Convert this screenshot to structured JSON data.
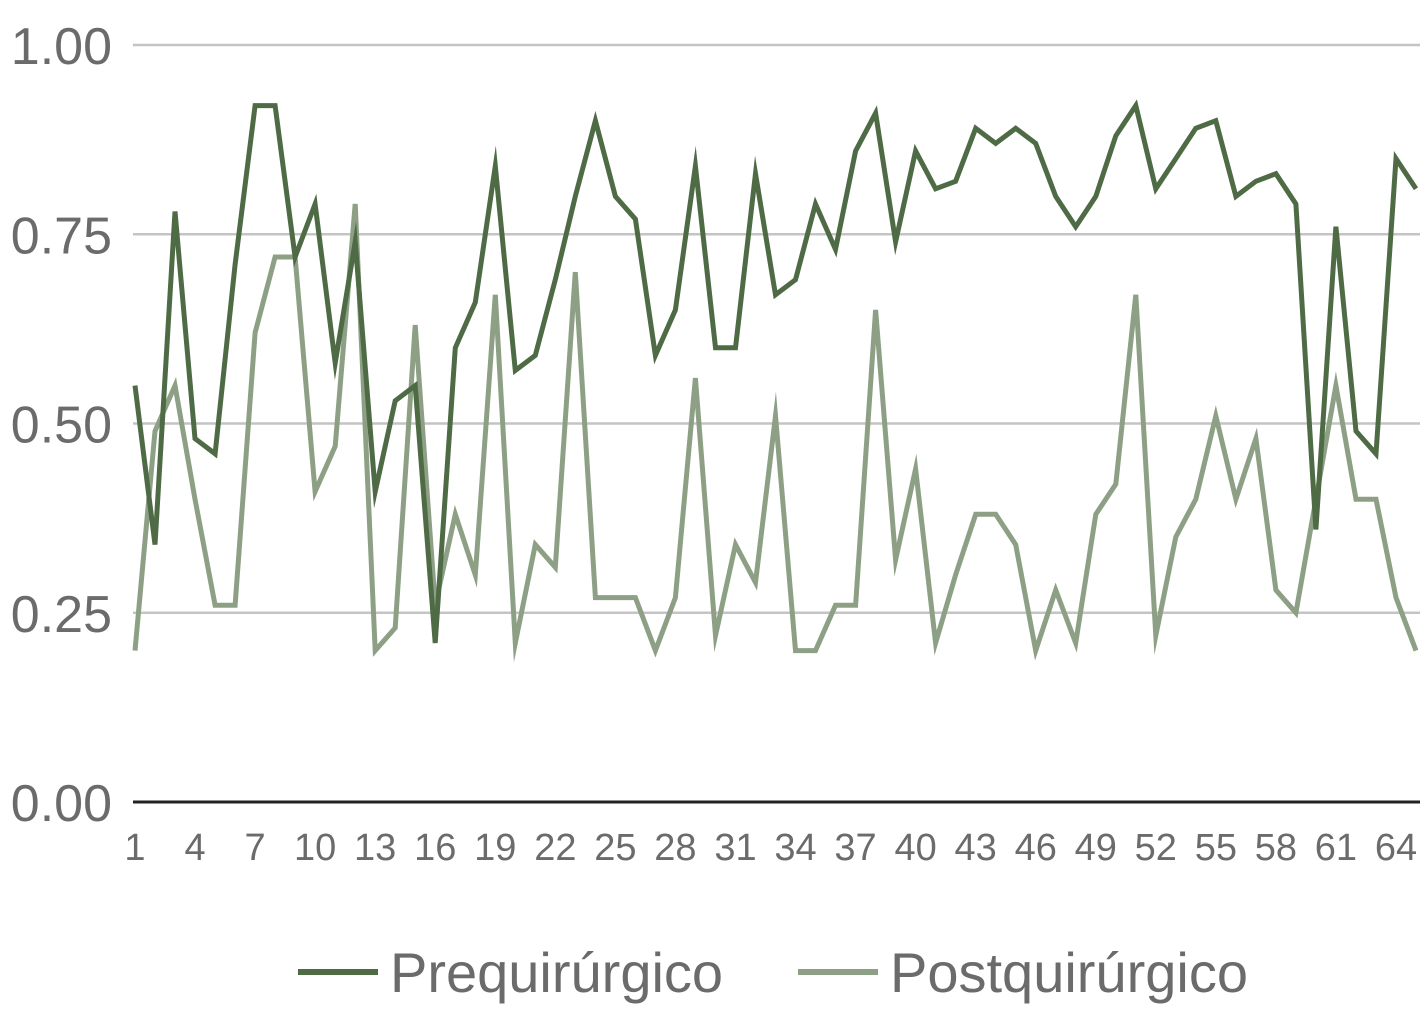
{
  "chart_data": {
    "type": "line",
    "ylim": [
      0,
      1
    ],
    "yticks": [
      0.0,
      0.25,
      0.5,
      0.75,
      1.0
    ],
    "yticks_labels": [
      "0.00",
      "0.25",
      "0.50",
      "0.75",
      "1.00"
    ],
    "x": [
      1,
      2,
      3,
      4,
      5,
      6,
      7,
      8,
      9,
      10,
      11,
      12,
      13,
      14,
      15,
      16,
      17,
      18,
      19,
      20,
      21,
      22,
      23,
      24,
      25,
      26,
      27,
      28,
      29,
      30,
      31,
      32,
      33,
      34,
      35,
      36,
      37,
      38,
      39,
      40,
      41,
      42,
      43,
      44,
      45,
      46,
      47,
      48,
      49,
      50,
      51,
      52,
      53,
      54,
      55,
      56,
      57,
      58,
      59,
      60,
      61,
      62,
      63,
      64,
      65
    ],
    "xtick_labels": [
      "1",
      "4",
      "7",
      "10",
      "13",
      "16",
      "19",
      "22",
      "25",
      "28",
      "31",
      "34",
      "37",
      "40",
      "43",
      "46",
      "49",
      "52",
      "55",
      "58",
      "61",
      "64"
    ],
    "grid": true,
    "legend_position": "bottom",
    "series": [
      {
        "name": "Prequirúrgico",
        "color": "#4e6b46",
        "values": [
          0.55,
          0.34,
          0.78,
          0.48,
          0.46,
          0.71,
          0.92,
          0.92,
          0.72,
          0.79,
          0.58,
          0.74,
          0.41,
          0.53,
          0.55,
          0.21,
          0.6,
          0.66,
          0.84,
          0.57,
          0.59,
          0.69,
          0.8,
          0.9,
          0.8,
          0.77,
          0.59,
          0.65,
          0.84,
          0.6,
          0.6,
          0.83,
          0.67,
          0.69,
          0.79,
          0.73,
          0.86,
          0.91,
          0.74,
          0.86,
          0.81,
          0.82,
          0.89,
          0.87,
          0.89,
          0.87,
          0.8,
          0.76,
          0.8,
          0.88,
          0.92,
          0.81,
          0.85,
          0.89,
          0.9,
          0.8,
          0.82,
          0.83,
          0.79,
          0.36,
          0.76,
          0.49,
          0.46,
          0.85,
          0.81
        ]
      },
      {
        "name": "Postquirúrgico",
        "color": "#8da085",
        "values": [
          0.2,
          0.49,
          0.55,
          0.4,
          0.26,
          0.26,
          0.62,
          0.72,
          0.72,
          0.41,
          0.47,
          0.79,
          0.2,
          0.23,
          0.63,
          0.26,
          0.38,
          0.3,
          0.67,
          0.21,
          0.34,
          0.31,
          0.7,
          0.27,
          0.27,
          0.27,
          0.2,
          0.27,
          0.56,
          0.22,
          0.34,
          0.29,
          0.51,
          0.2,
          0.2,
          0.26,
          0.26,
          0.65,
          0.32,
          0.44,
          0.21,
          0.3,
          0.38,
          0.38,
          0.34,
          0.2,
          0.28,
          0.21,
          0.38,
          0.42,
          0.67,
          0.22,
          0.35,
          0.4,
          0.51,
          0.4,
          0.48,
          0.28,
          0.25,
          0.4,
          0.55,
          0.4,
          0.4,
          0.27,
          0.2
        ]
      }
    ]
  }
}
